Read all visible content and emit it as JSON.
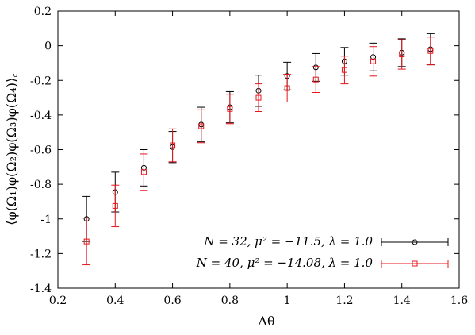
{
  "chart_data": {
    "type": "scatter",
    "xlabel": "Δθ",
    "ylabel": "⟨φ(Ω₁)φ(Ω₂)φ(Ω₃)φ(Ω₄)⟩꜀",
    "xlim": [
      0.2,
      1.6
    ],
    "ylim": [
      -1.4,
      0.2
    ],
    "x_ticks": [
      "0.2",
      "0.4",
      "0.6",
      "0.8",
      "1",
      "1.2",
      "1.4",
      "1.6"
    ],
    "y_ticks": [
      "0.2",
      "0",
      "-0.2",
      "-0.4",
      "-0.6",
      "-0.8",
      "-1",
      "-1.2",
      "-1.4"
    ],
    "x_tick_values": [
      0.2,
      0.4,
      0.6,
      0.8,
      1.0,
      1.2,
      1.4,
      1.6
    ],
    "y_tick_values": [
      0.2,
      0.0,
      -0.2,
      -0.4,
      -0.6,
      -0.8,
      -1.0,
      -1.2,
      -1.4
    ],
    "grid": false,
    "legend_position": "bottom-right",
    "series": [
      {
        "name": "N = 32, μ² = −11.5, λ = 1.0",
        "color": "#000000",
        "marker": "circle",
        "x": [
          0.3,
          0.4,
          0.5,
          0.6,
          0.7,
          0.8,
          0.9,
          1.0,
          1.1,
          1.2,
          1.3,
          1.4,
          1.5
        ],
        "y": [
          -1.0,
          -0.845,
          -0.705,
          -0.585,
          -0.455,
          -0.355,
          -0.26,
          -0.175,
          -0.125,
          -0.09,
          -0.065,
          -0.04,
          -0.02
        ],
        "err": [
          0.13,
          0.115,
          0.105,
          0.09,
          0.1,
          0.09,
          0.09,
          0.08,
          0.08,
          0.08,
          0.08,
          0.08,
          0.09
        ]
      },
      {
        "name": "N = 40, μ² = −14.08, λ = 1.0",
        "color": "#e8141b",
        "marker": "square",
        "x": [
          0.3,
          0.4,
          0.5,
          0.6,
          0.7,
          0.8,
          0.9,
          1.0,
          1.1,
          1.2,
          1.3,
          1.4,
          1.5
        ],
        "y": [
          -1.13,
          -0.925,
          -0.73,
          -0.575,
          -0.465,
          -0.365,
          -0.3,
          -0.245,
          -0.195,
          -0.14,
          -0.09,
          -0.05,
          -0.03
        ],
        "err": [
          0.135,
          0.12,
          0.105,
          0.095,
          0.095,
          0.085,
          0.08,
          0.08,
          0.075,
          0.08,
          0.085,
          0.085,
          0.08
        ]
      }
    ]
  }
}
